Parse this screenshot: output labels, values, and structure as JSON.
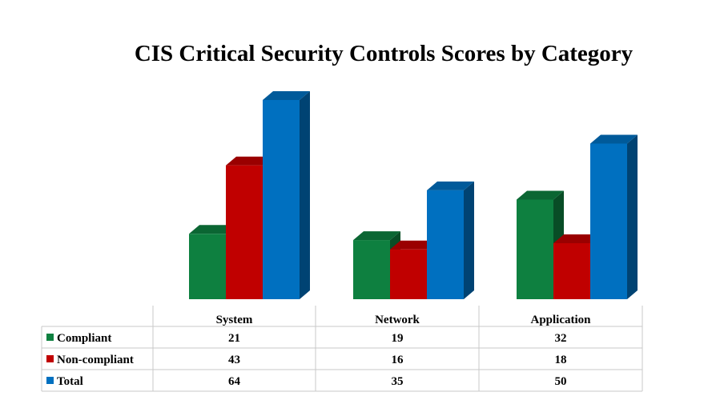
{
  "chart_data": {
    "type": "bar",
    "title": "CIS Critical Security Controls Scores by Category",
    "categories": [
      "System",
      "Network",
      "Application"
    ],
    "series": [
      {
        "name": "Compliant",
        "values": [
          21,
          19,
          32
        ],
        "color": "#0e8040"
      },
      {
        "name": "Non-compliant",
        "values": [
          43,
          16,
          18
        ],
        "color": "#c00000"
      },
      {
        "name": "Total",
        "values": [
          64,
          35,
          50
        ],
        "color": "#0070c0"
      }
    ],
    "ylim": [
      0,
      64
    ],
    "grid": false,
    "legend": "data-table",
    "style": "3d-column"
  }
}
